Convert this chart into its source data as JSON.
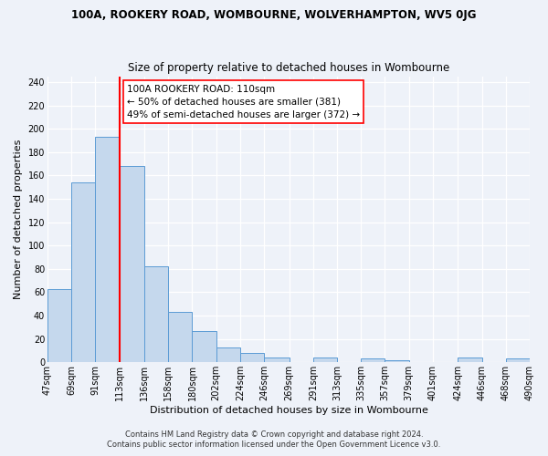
{
  "title_line1": "100A, ROOKERY ROAD, WOMBOURNE, WOLVERHAMPTON, WV5 0JG",
  "title_line2": "Size of property relative to detached houses in Wombourne",
  "xlabel": "Distribution of detached houses by size in Wombourne",
  "ylabel": "Number of detached properties",
  "bin_edges": [
    47,
    69,
    91,
    113,
    136,
    158,
    180,
    202,
    224,
    246,
    269,
    291,
    313,
    335,
    357,
    379,
    401,
    424,
    446,
    468,
    490
  ],
  "bin_labels": [
    "47sqm",
    "69sqm",
    "91sqm",
    "113sqm",
    "136sqm",
    "158sqm",
    "180sqm",
    "202sqm",
    "224sqm",
    "246sqm",
    "269sqm",
    "291sqm",
    "313sqm",
    "335sqm",
    "357sqm",
    "379sqm",
    "401sqm",
    "424sqm",
    "446sqm",
    "468sqm",
    "490sqm"
  ],
  "counts": [
    63,
    154,
    193,
    168,
    82,
    43,
    27,
    13,
    8,
    4,
    0,
    4,
    0,
    3,
    2,
    0,
    0,
    4,
    0,
    3
  ],
  "bar_color": "#c5d8ed",
  "bar_edge_color": "#5b9bd5",
  "vline_x": 113,
  "vline_color": "red",
  "annotation_line1": "100A ROOKERY ROAD: 110sqm",
  "annotation_line2": "← 50% of detached houses are smaller (381)",
  "annotation_line3": "49% of semi-detached houses are larger (372) →",
  "annotation_box_color": "white",
  "annotation_box_edge": "red",
  "ylim": [
    0,
    245
  ],
  "yticks": [
    0,
    20,
    40,
    60,
    80,
    100,
    120,
    140,
    160,
    180,
    200,
    220,
    240
  ],
  "footer_line1": "Contains HM Land Registry data © Crown copyright and database right 2024.",
  "footer_line2": "Contains public sector information licensed under the Open Government Licence v3.0.",
  "bg_color": "#eef2f9",
  "title_fontsize": 8.5,
  "subtitle_fontsize": 8.5,
  "axis_label_fontsize": 8,
  "tick_fontsize": 7,
  "annotation_fontsize": 7.5,
  "footer_fontsize": 6
}
